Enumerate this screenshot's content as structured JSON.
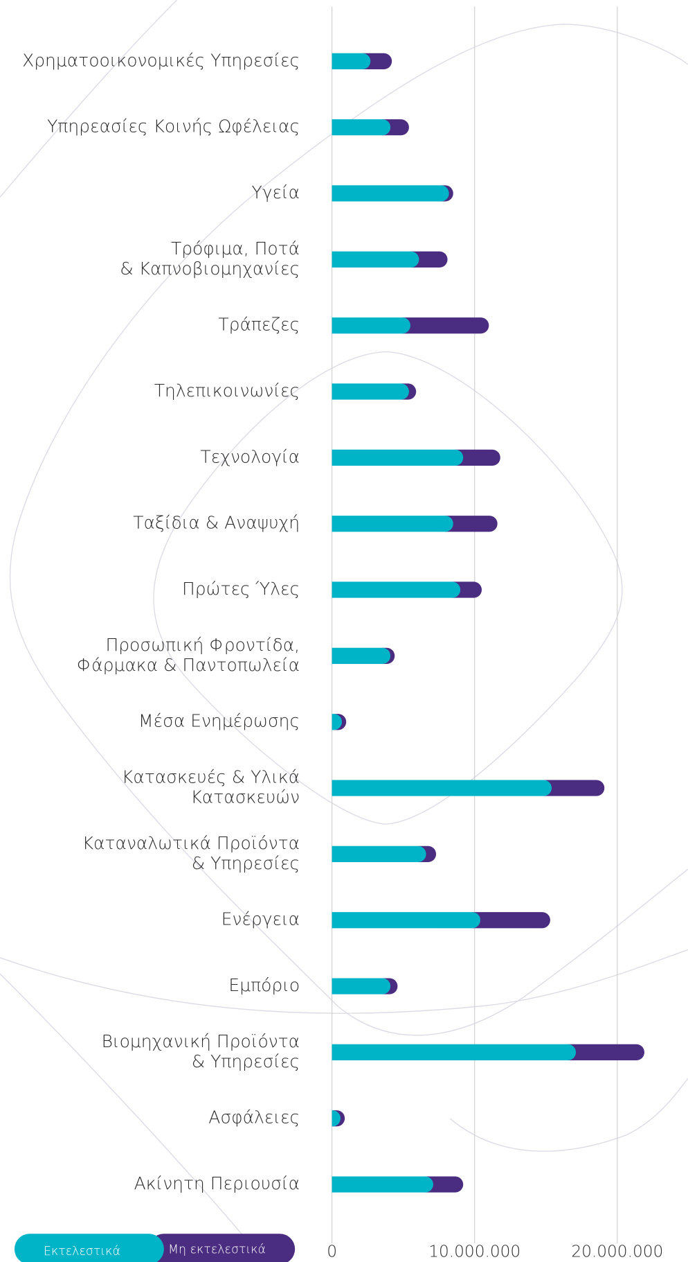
{
  "chart_data": {
    "type": "stacked-barh",
    "categories": [
      [
        "Χρηματοοικονομικές Υπηρεσίες"
      ],
      [
        "Υπηρεασίες Κοινής Ωφέλειας"
      ],
      [
        "Υγεία"
      ],
      [
        "Τρόφιμα, Ποτά",
        "& Καπνοβιομηχανίες"
      ],
      [
        "Τράπεζες"
      ],
      [
        "Τηλεπικοινωνίες"
      ],
      [
        "Τεχνολογία"
      ],
      [
        "Ταξίδια & Αναψυχή"
      ],
      [
        "Πρώτες Ύλες"
      ],
      [
        "Προσωπική Φροντίδα,",
        "Φάρμακα & Παντοπωλεία"
      ],
      [
        "Μέσα Ενημέρωσης"
      ],
      [
        "Κατασκευές & Υλικά",
        "Κατασκευών"
      ],
      [
        "Καταναλωτικά Προϊόντα",
        "& Υπηρεσίες"
      ],
      [
        "Ενέργεια"
      ],
      [
        "Εμπόριο"
      ],
      [
        "Βιομηχανική Προϊόντα",
        "& Υπηρεσίες"
      ],
      [
        "Ασφάλειες"
      ],
      [
        "Ακίνητη Περιουσία"
      ]
    ],
    "series": [
      {
        "name": "Εκτελεστικά",
        "color": "#00b4c8",
        "values": [
          2700000,
          4100000,
          8200000,
          6100000,
          5500000,
          5400000,
          9200000,
          8500000,
          9000000,
          4100000,
          700000,
          15400000,
          6600000,
          10400000,
          4100000,
          17100000,
          600000,
          7100000
        ]
      },
      {
        "name": "Μη εκτελεστικά",
        "color": "#4a2c80",
        "values": [
          1500000,
          1300000,
          300000,
          2000000,
          5500000,
          500000,
          2600000,
          3100000,
          1500000,
          300000,
          300000,
          3700000,
          700000,
          4900000,
          500000,
          4800000,
          300000,
          2100000
        ]
      }
    ],
    "xlim": [
      0,
      24000000
    ],
    "xticks": [
      0,
      {
        "value": 10000000,
        "label": "10.000.000"
      },
      {
        "value": 20000000,
        "label": "20.000.000"
      }
    ],
    "grid": true,
    "legend": "bottom-left"
  }
}
